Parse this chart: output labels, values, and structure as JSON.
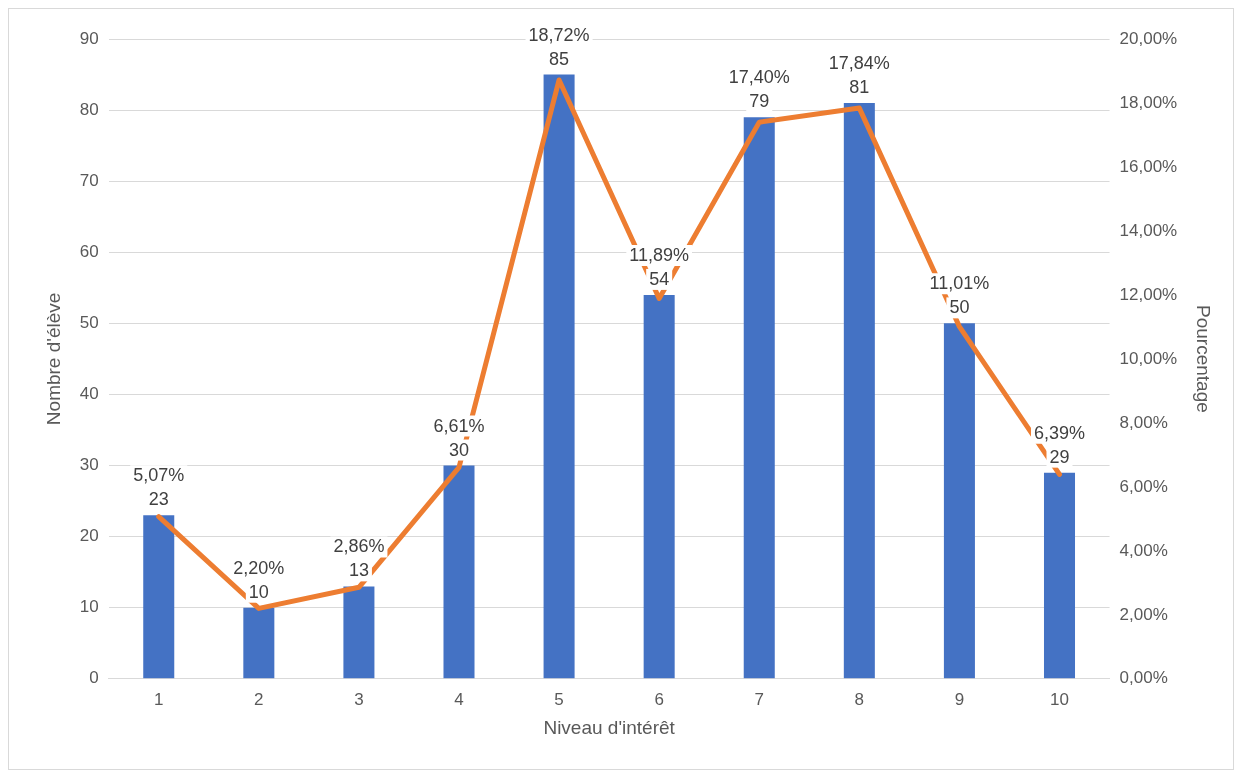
{
  "chart_data": {
    "type": "bar",
    "xlabel": "Niveau d'intérêt",
    "ylabel": "Nombre d'élève",
    "y2label": "Pourcentage",
    "categories": [
      "1",
      "2",
      "3",
      "4",
      "5",
      "6",
      "7",
      "8",
      "9",
      "10"
    ],
    "series": [
      {
        "color": "#4472c4",
        "values": [
          23,
          10,
          13,
          30,
          85,
          54,
          79,
          81,
          50,
          29
        ],
        "value_labels": [
          "23",
          "10",
          "13",
          "30",
          "85",
          "54",
          "79",
          "81",
          "50",
          "29"
        ]
      },
      {
        "type": "line",
        "axis": "y2",
        "color": "#ed7d31",
        "values": [
          5.07,
          2.2,
          2.86,
          6.61,
          18.72,
          11.89,
          17.4,
          17.84,
          11.01,
          6.39
        ],
        "value_labels": [
          "5,07%",
          "2,20%",
          "2,86%",
          "6,61%",
          "18,72%",
          "11,89%",
          "17,40%",
          "17,84%",
          "11,01%",
          "6,39%"
        ]
      }
    ],
    "ylim": [
      0,
      90
    ],
    "yticks": [
      0,
      10,
      20,
      30,
      40,
      50,
      60,
      70,
      80,
      90
    ],
    "y2lim": [
      0,
      20
    ],
    "y2ticks": [
      {
        "value": 0,
        "label": "0,00%"
      },
      {
        "value": 2,
        "label": "2,00%"
      },
      {
        "value": 4,
        "label": "4,00%"
      },
      {
        "value": 6,
        "label": "6,00%"
      },
      {
        "value": 8,
        "label": "8,00%"
      },
      {
        "value": 10,
        "label": "10,00%"
      },
      {
        "value": 12,
        "label": "12,00%"
      },
      {
        "value": 14,
        "label": "14,00%"
      },
      {
        "value": 16,
        "label": "16,00%"
      },
      {
        "value": 18,
        "label": "18,00%"
      },
      {
        "value": 20,
        "label": "20,00%"
      }
    ],
    "grid": "y",
    "marker": "none"
  }
}
